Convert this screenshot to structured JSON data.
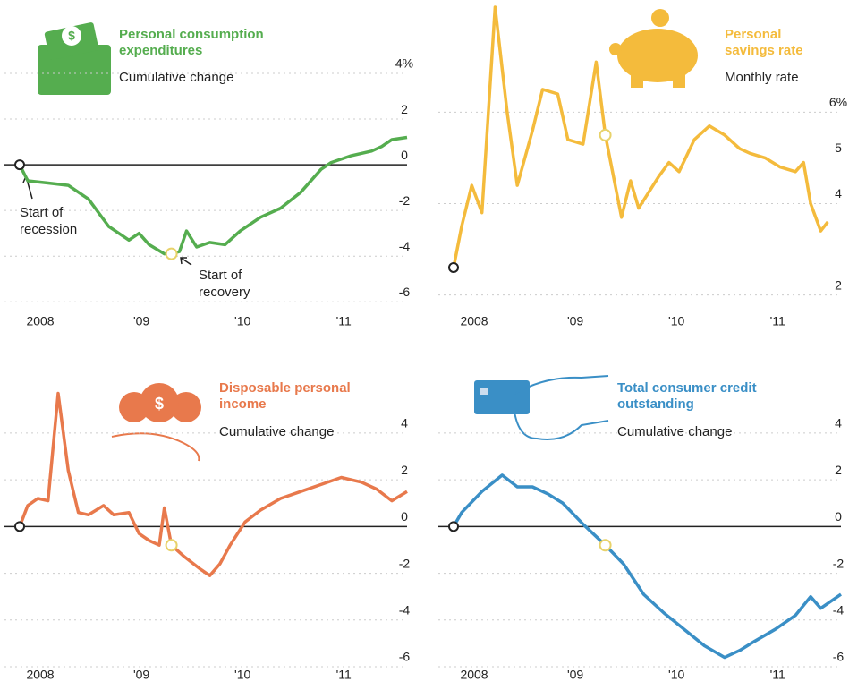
{
  "chart_data": [
    {
      "type": "line",
      "title": "Personal consumption expenditures",
      "subtitle": "Cumulative change",
      "color": "#55ad4f",
      "x": [
        2007.92,
        2008.0,
        2008.2,
        2008.4,
        2008.6,
        2008.8,
        2009.0,
        2009.1,
        2009.2,
        2009.35,
        2009.42,
        2009.5,
        2009.57,
        2009.67,
        2009.8,
        2009.95,
        2010.1,
        2010.3,
        2010.5,
        2010.7,
        2010.9,
        2011.0,
        2011.2,
        2011.4,
        2011.5,
        2011.6,
        2011.75
      ],
      "values": [
        0,
        -0.7,
        -0.8,
        -0.9,
        -1.5,
        -2.7,
        -3.3,
        -3.0,
        -3.5,
        -3.9,
        -3.9,
        -3.8,
        -2.9,
        -3.6,
        -3.4,
        -3.5,
        -2.9,
        -2.3,
        -1.9,
        -1.2,
        -0.2,
        0.1,
        0.4,
        0.6,
        0.8,
        1.1,
        1.2
      ],
      "xlim": [
        2007.92,
        2011.75
      ],
      "xticks": [
        {
          "value": 2008,
          "label": "2008"
        },
        {
          "value": 2009,
          "label": "'09"
        },
        {
          "value": 2010,
          "label": "'10"
        },
        {
          "value": 2011,
          "label": "'11"
        }
      ],
      "ylim": [
        -6.5,
        6.9
      ],
      "yticks": [
        -6,
        -4,
        -2,
        0,
        2,
        {
          "value": 4,
          "label": "4%"
        }
      ],
      "recovery_x": 2009.42,
      "annotations": [
        "Start of recession",
        "Start of recovery"
      ]
    },
    {
      "type": "line",
      "title": "Personal savings rate",
      "subtitle": "Monthly rate",
      "color": "#f4bb3c",
      "x": [
        2007.92,
        2008.0,
        2008.1,
        2008.2,
        2008.33,
        2008.45,
        2008.55,
        2008.7,
        2008.8,
        2008.95,
        2009.05,
        2009.2,
        2009.33,
        2009.42,
        2009.58,
        2009.67,
        2009.75,
        2009.95,
        2010.05,
        2010.15,
        2010.3,
        2010.45,
        2010.6,
        2010.75,
        2010.85,
        2011.0,
        2011.15,
        2011.3,
        2011.38,
        2011.45,
        2011.55,
        2011.62
      ],
      "values": [
        2.6,
        3.5,
        4.4,
        3.8,
        8.3,
        6.0,
        4.4,
        5.6,
        6.5,
        6.4,
        5.4,
        5.3,
        7.1,
        5.5,
        3.7,
        4.5,
        3.9,
        4.6,
        4.9,
        4.7,
        5.4,
        5.7,
        5.5,
        5.2,
        5.1,
        5.0,
        4.8,
        4.7,
        4.9,
        4.0,
        3.4,
        3.6
      ],
      "xlim": [
        2007.92,
        2011.75
      ],
      "xticks": [
        {
          "value": 2008,
          "label": "2008"
        },
        {
          "value": 2009,
          "label": "'09"
        },
        {
          "value": 2010,
          "label": "'10"
        },
        {
          "value": 2011,
          "label": "'11"
        }
      ],
      "ylim": [
        1.6,
        8.3
      ],
      "yticks": [
        2,
        4,
        5,
        {
          "value": 6,
          "label": "6%"
        }
      ],
      "recovery_x": 2009.42
    },
    {
      "type": "line",
      "title": "Disposable personal income",
      "subtitle": "Cumulative change",
      "color": "#e8794c",
      "x": [
        2007.92,
        2008.0,
        2008.1,
        2008.2,
        2008.3,
        2008.4,
        2008.5,
        2008.6,
        2008.75,
        2008.85,
        2009.0,
        2009.1,
        2009.2,
        2009.3,
        2009.35,
        2009.42,
        2009.55,
        2009.7,
        2009.8,
        2009.9,
        2010.0,
        2010.15,
        2010.3,
        2010.5,
        2010.7,
        2010.9,
        2011.1,
        2011.3,
        2011.45,
        2011.6,
        2011.75
      ],
      "values": [
        0,
        0.9,
        1.2,
        1.1,
        5.7,
        2.4,
        0.6,
        0.5,
        0.9,
        0.5,
        0.6,
        -0.3,
        -0.6,
        -0.8,
        0.8,
        -0.8,
        -1.3,
        -1.8,
        -2.1,
        -1.6,
        -0.8,
        0.2,
        0.7,
        1.2,
        1.5,
        1.8,
        2.1,
        1.9,
        1.6,
        1.1,
        1.5
      ],
      "xlim": [
        2007.92,
        2011.75
      ],
      "xticks": [
        {
          "value": 2008,
          "label": "2008"
        },
        {
          "value": 2009,
          "label": "'09"
        },
        {
          "value": 2010,
          "label": "'10"
        },
        {
          "value": 2011,
          "label": "'11"
        }
      ],
      "ylim": [
        -6.0,
        7.1
      ],
      "yticks": [
        -6,
        -4,
        -2,
        0,
        2,
        4
      ],
      "recovery_x": 2009.42
    },
    {
      "type": "line",
      "title": "Total consumer credit outstanding",
      "subtitle": "Cumulative change",
      "color": "#3a8fc6",
      "x": [
        2007.92,
        2008.0,
        2008.2,
        2008.4,
        2008.55,
        2008.7,
        2008.85,
        2009.0,
        2009.2,
        2009.42,
        2009.6,
        2009.8,
        2010.0,
        2010.2,
        2010.4,
        2010.6,
        2010.75,
        2010.9,
        2011.1,
        2011.3,
        2011.45,
        2011.55,
        2011.75
      ],
      "values": [
        0,
        0.6,
        1.5,
        2.2,
        1.7,
        1.7,
        1.4,
        1.0,
        0.1,
        -0.8,
        -1.6,
        -2.9,
        -3.7,
        -4.4,
        -5.1,
        -5.6,
        -5.3,
        -4.9,
        -4.4,
        -3.8,
        -3.0,
        -3.5,
        -2.9
      ],
      "xlim": [
        2007.92,
        2011.75
      ],
      "xticks": [
        {
          "value": 2008,
          "label": "2008"
        },
        {
          "value": 2009,
          "label": "'09"
        },
        {
          "value": 2010,
          "label": "'10"
        },
        {
          "value": 2011,
          "label": "'11"
        }
      ],
      "ylim": [
        -6.0,
        7.1
      ],
      "yticks": [
        -6,
        -4,
        -2,
        0,
        2,
        4
      ],
      "recovery_x": 2009.42
    }
  ]
}
